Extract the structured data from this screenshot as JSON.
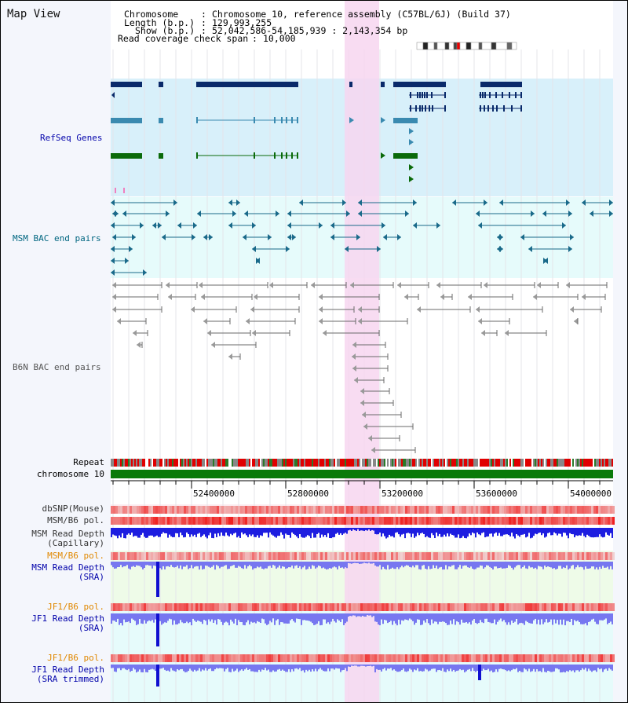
{
  "panel_title": "Map View",
  "header": {
    "chromosome_key": "Chromosome",
    "chromosome_value": "Chromosome 10, reference assembly (C57BL/6J) (Build 37)",
    "length_key": "Length (b.p.)",
    "length_value": "129,993,255",
    "show_key": "Show (b.p.)",
    "show_value": "52,042,586-54,185,939 : 2,143,354 bp",
    "coverage_key": "Read coverage check span",
    "coverage_value": "10,000"
  },
  "tracks": {
    "refseq": "RefSeq Genes",
    "msm_bac": "MSM BAC end pairs",
    "b6n_bac": "B6N BAC end pairs",
    "repeat": "Repeat",
    "chromosome": "chromosome 10",
    "dbsnp": "dbSNP(Mouse)",
    "msm_pol": "MSM/B6 pol.",
    "msm_depth_cap_1": "MSM Read Depth",
    "msm_depth_cap_2": "(Capillary)",
    "msm_pol_2": "MSM/B6 pol.",
    "msm_depth_sra_1": "MSM Read Depth",
    "msm_depth_sra_2": "(SRA)",
    "jf1_pol": "JF1/B6 pol.",
    "jf1_depth_sra_1": "JF1 Read Depth",
    "jf1_depth_sra_2": "(SRA)",
    "jf1_pol_2": "JF1/B6 pol.",
    "jf1_depth_trim_1": "JF1 Read Depth",
    "jf1_depth_trim_2": "(SRA trimmed)"
  },
  "axis_ticks": [
    "52400000",
    "52800000",
    "53200000",
    "53600000",
    "54000000"
  ],
  "colors": {
    "refseq_bg": "#d8f0fa",
    "bac_bg": "#e6fbfb",
    "highlight": "#f7d6f0",
    "depth_blue": "#1d1de0",
    "depth_light": "#7777f0",
    "pol_red": "#f04040",
    "chromosome_green": "#0a7a0a",
    "label_blue": "#0000aa",
    "label_teal": "#006680",
    "label_orange": "#e08800"
  }
}
